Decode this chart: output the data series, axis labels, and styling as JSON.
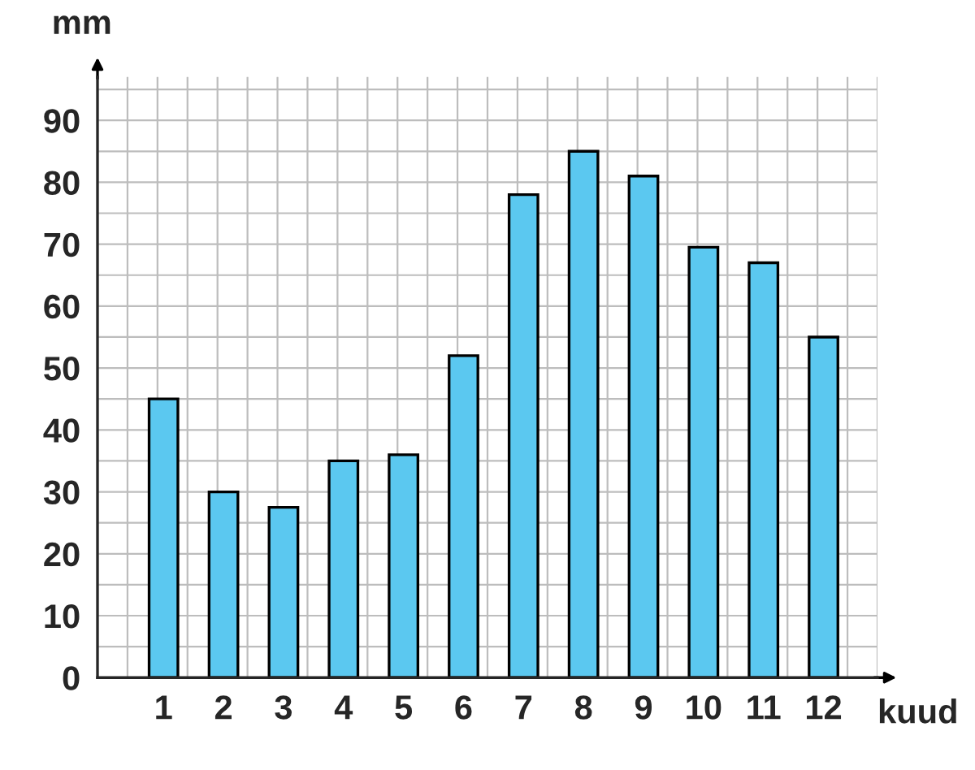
{
  "chart_data": {
    "type": "bar",
    "categories": [
      "1",
      "2",
      "3",
      "4",
      "5",
      "6",
      "7",
      "8",
      "9",
      "10",
      "11",
      "12"
    ],
    "values": [
      45,
      30,
      27.5,
      35,
      36,
      52,
      78,
      85,
      81,
      69.5,
      67,
      55
    ],
    "color": "#5bc8f0",
    "xlabel": "kuud",
    "ylabel": "mm",
    "ylim": [
      0,
      97
    ],
    "yticks": [
      0,
      10,
      20,
      30,
      40,
      50,
      60,
      70,
      80,
      90
    ],
    "grid": true
  }
}
